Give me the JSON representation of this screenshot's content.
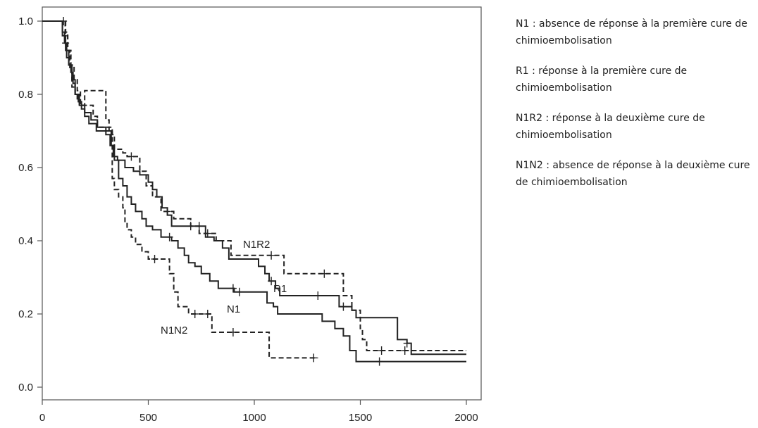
{
  "chart_data": {
    "type": "line",
    "title": "",
    "xlabel": "",
    "ylabel": "",
    "xlim": [
      0,
      2000
    ],
    "ylim": [
      0,
      1.0
    ],
    "x_ticks": [
      "0",
      "500",
      "1000",
      "1500",
      "2000"
    ],
    "y_ticks": [
      "0.0",
      "0.2",
      "0.4",
      "0.6",
      "0.8",
      "1.0"
    ],
    "grid": false,
    "step": true,
    "series": [
      {
        "name": "N1",
        "line_style": "solid",
        "points": [
          [
            0,
            1.0
          ],
          [
            85,
            1.0
          ],
          [
            95,
            0.97
          ],
          [
            105,
            0.94
          ],
          [
            115,
            0.9
          ],
          [
            125,
            0.88
          ],
          [
            135,
            0.86
          ],
          [
            145,
            0.83
          ],
          [
            155,
            0.8
          ],
          [
            170,
            0.78
          ],
          [
            185,
            0.76
          ],
          [
            200,
            0.74
          ],
          [
            220,
            0.72
          ],
          [
            240,
            0.72
          ],
          [
            255,
            0.7
          ],
          [
            315,
            0.7
          ],
          [
            325,
            0.66
          ],
          [
            340,
            0.62
          ],
          [
            360,
            0.57
          ],
          [
            380,
            0.55
          ],
          [
            400,
            0.52
          ],
          [
            420,
            0.5
          ],
          [
            440,
            0.48
          ],
          [
            470,
            0.46
          ],
          [
            490,
            0.44
          ],
          [
            520,
            0.43
          ],
          [
            560,
            0.41
          ],
          [
            610,
            0.4
          ],
          [
            640,
            0.38
          ],
          [
            670,
            0.36
          ],
          [
            690,
            0.34
          ],
          [
            720,
            0.33
          ],
          [
            750,
            0.31
          ],
          [
            790,
            0.29
          ],
          [
            830,
            0.27
          ],
          [
            870,
            0.27
          ],
          [
            905,
            0.26
          ],
          [
            1050,
            0.26
          ],
          [
            1060,
            0.23
          ],
          [
            1090,
            0.22
          ],
          [
            1110,
            0.2
          ],
          [
            1300,
            0.2
          ],
          [
            1320,
            0.18
          ],
          [
            1380,
            0.16
          ],
          [
            1420,
            0.14
          ],
          [
            1450,
            0.1
          ],
          [
            1480,
            0.07
          ],
          [
            2000,
            0.07
          ]
        ],
        "censored_x": [
          110,
          600,
          900,
          930,
          1590
        ]
      },
      {
        "name": "R1",
        "line_style": "solid",
        "points": [
          [
            0,
            1.0
          ],
          [
            80,
            1.0
          ],
          [
            95,
            0.96
          ],
          [
            110,
            0.92
          ],
          [
            125,
            0.88
          ],
          [
            140,
            0.84
          ],
          [
            155,
            0.8
          ],
          [
            175,
            0.77
          ],
          [
            200,
            0.75
          ],
          [
            230,
            0.73
          ],
          [
            260,
            0.71
          ],
          [
            300,
            0.69
          ],
          [
            320,
            0.66
          ],
          [
            335,
            0.63
          ],
          [
            355,
            0.62
          ],
          [
            390,
            0.6
          ],
          [
            430,
            0.59
          ],
          [
            460,
            0.58
          ],
          [
            500,
            0.56
          ],
          [
            520,
            0.54
          ],
          [
            540,
            0.52
          ],
          [
            565,
            0.49
          ],
          [
            590,
            0.47
          ],
          [
            610,
            0.44
          ],
          [
            760,
            0.44
          ],
          [
            770,
            0.41
          ],
          [
            810,
            0.4
          ],
          [
            850,
            0.38
          ],
          [
            880,
            0.35
          ],
          [
            1000,
            0.35
          ],
          [
            1020,
            0.33
          ],
          [
            1050,
            0.31
          ],
          [
            1070,
            0.29
          ],
          [
            1100,
            0.27
          ],
          [
            1120,
            0.25
          ],
          [
            1390,
            0.25
          ],
          [
            1400,
            0.22
          ],
          [
            1460,
            0.21
          ],
          [
            1480,
            0.19
          ],
          [
            1660,
            0.19
          ],
          [
            1675,
            0.13
          ],
          [
            1720,
            0.12
          ],
          [
            1740,
            0.09
          ],
          [
            2000,
            0.09
          ]
        ],
        "censored_x": [
          700,
          740,
          1080,
          1300,
          1420,
          1720
        ]
      },
      {
        "name": "N1R2",
        "line_style": "dashed",
        "points": [
          [
            0,
            1.0
          ],
          [
            100,
            1.0
          ],
          [
            108,
            0.97
          ],
          [
            120,
            0.92
          ],
          [
            130,
            0.87
          ],
          [
            140,
            0.82
          ],
          [
            155,
            0.8
          ],
          [
            165,
            0.78
          ],
          [
            175,
            0.77
          ],
          [
            200,
            0.81
          ],
          [
            290,
            0.81
          ],
          [
            300,
            0.73
          ],
          [
            315,
            0.7
          ],
          [
            330,
            0.69
          ],
          [
            340,
            0.65
          ],
          [
            380,
            0.64
          ],
          [
            400,
            0.63
          ],
          [
            450,
            0.63
          ],
          [
            460,
            0.59
          ],
          [
            490,
            0.55
          ],
          [
            520,
            0.52
          ],
          [
            560,
            0.48
          ],
          [
            600,
            0.48
          ],
          [
            620,
            0.46
          ],
          [
            690,
            0.46
          ],
          [
            700,
            0.44
          ],
          [
            740,
            0.42
          ],
          [
            820,
            0.4
          ],
          [
            880,
            0.4
          ],
          [
            890,
            0.36
          ],
          [
            1130,
            0.36
          ],
          [
            1140,
            0.31
          ],
          [
            1400,
            0.31
          ],
          [
            1420,
            0.25
          ],
          [
            1460,
            0.21
          ],
          [
            1500,
            0.16
          ],
          [
            1510,
            0.13
          ],
          [
            1530,
            0.1
          ],
          [
            2000,
            0.1
          ]
        ],
        "censored_x": [
          100,
          420,
          590,
          780,
          1080,
          1330,
          1600,
          1710
        ]
      },
      {
        "name": "N1N2",
        "line_style": "dashed",
        "points": [
          [
            0,
            1.0
          ],
          [
            100,
            1.0
          ],
          [
            110,
            0.96
          ],
          [
            120,
            0.92
          ],
          [
            135,
            0.88
          ],
          [
            150,
            0.84
          ],
          [
            165,
            0.81
          ],
          [
            180,
            0.77
          ],
          [
            230,
            0.77
          ],
          [
            240,
            0.74
          ],
          [
            260,
            0.71
          ],
          [
            320,
            0.71
          ],
          [
            330,
            0.57
          ],
          [
            340,
            0.54
          ],
          [
            360,
            0.52
          ],
          [
            380,
            0.49
          ],
          [
            390,
            0.45
          ],
          [
            400,
            0.43
          ],
          [
            420,
            0.41
          ],
          [
            440,
            0.39
          ],
          [
            470,
            0.37
          ],
          [
            500,
            0.35
          ],
          [
            590,
            0.35
          ],
          [
            600,
            0.31
          ],
          [
            620,
            0.26
          ],
          [
            640,
            0.22
          ],
          [
            690,
            0.2
          ],
          [
            790,
            0.2
          ],
          [
            800,
            0.15
          ],
          [
            1050,
            0.15
          ],
          [
            1070,
            0.08
          ],
          [
            1300,
            0.08
          ]
        ],
        "censored_x": [
          530,
          720,
          780,
          900,
          1280
        ]
      }
    ],
    "annotations": [
      "N1R2",
      "R1",
      "N1",
      "N1N2"
    ]
  },
  "legend": [
    "N1 : absence de réponse à la première cure de chimioembolisation",
    "R1 : réponse à la première cure de chimioembolisation",
    "N1R2 : réponse à la deuxième cure de chimioembolisation",
    "N1N2 : absence de réponse à la deuxième cure de chimioembolisation"
  ]
}
